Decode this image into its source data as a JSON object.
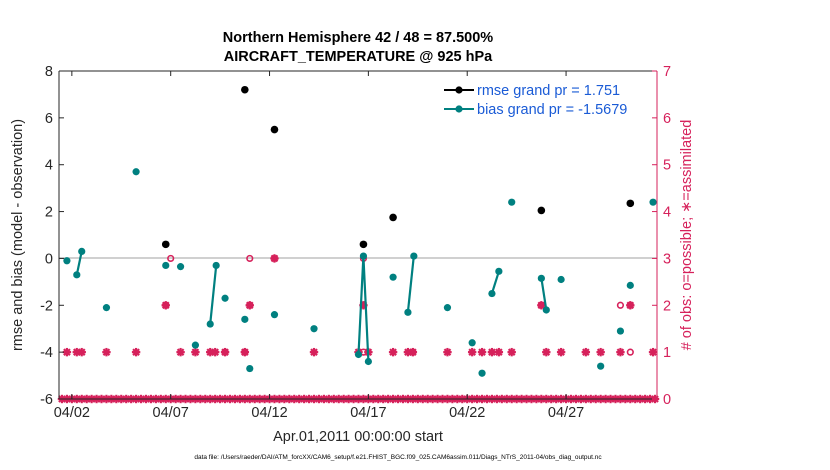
{
  "chart_data": {
    "type": "scatter",
    "title_line1": "Northern Hemisphere 42 / 48 = 87.500%",
    "title_line2": "AIRCRAFT_TEMPERATURE @ 925 hPa",
    "xlabel": "Apr.01,2011 00:00:00 start",
    "ylabel_left": "rmse and bias (model - observation)",
    "ylabel_right": "# of obs: o=possible; ∗=assimilated",
    "footer": "data file: /Users/raeder/DAI/ATM_forcXX/CAM6_setup/f.e21.FHIST_BGC.f09_025.CAM6assim.011/Diags_NTrS_2011-04/obs_diag_output.nc",
    "xlim": [
      1.35,
      31.6
    ],
    "ylim_left": [
      -6,
      8
    ],
    "ylim_right": [
      0,
      7
    ],
    "x_ticks": [
      2,
      7,
      12,
      17,
      22,
      27
    ],
    "x_tick_labels": [
      "04/02",
      "04/07",
      "04/12",
      "04/17",
      "04/22",
      "04/27"
    ],
    "y_ticks_left": [
      -6,
      -4,
      -2,
      0,
      2,
      4,
      6,
      8
    ],
    "y_ticks_right": [
      0,
      1,
      2,
      3,
      4,
      5,
      6,
      7
    ],
    "legend": {
      "position": "top-right",
      "entries": [
        {
          "label": "rmse grand pr = 1.751",
          "color": "#000000"
        },
        {
          "label": "bias grand pr = -1.5679",
          "color": "#008080"
        }
      ]
    },
    "colors": {
      "rmse": "#000000",
      "bias": "#008080",
      "obs": "#d6215b",
      "zero_line": "#b5b5b5",
      "legend_text": "#1a5bd6"
    },
    "rmse": [
      {
        "x": 6.75,
        "y": 0.6
      },
      {
        "x": 10.75,
        "y": 7.2
      },
      {
        "x": 12.25,
        "y": 5.5
      },
      {
        "x": 16.75,
        "y": 0.6
      },
      {
        "x": 18.25,
        "y": 1.75
      },
      {
        "x": 25.75,
        "y": 2.05
      },
      {
        "x": 30.25,
        "y": 2.35
      }
    ],
    "bias_segments": [
      [
        {
          "x": 1.75,
          "y": -0.1
        }
      ],
      [
        {
          "x": 2.25,
          "y": -0.7
        },
        {
          "x": 2.5,
          "y": 0.3
        }
      ],
      [
        {
          "x": 3.75,
          "y": -2.1
        }
      ],
      [
        {
          "x": 5.25,
          "y": 3.7
        }
      ],
      [
        {
          "x": 6.75,
          "y": -0.3
        }
      ],
      [
        {
          "x": 7.5,
          "y": -0.35
        }
      ],
      [
        {
          "x": 8.25,
          "y": -3.7
        }
      ],
      [
        {
          "x": 9.0,
          "y": -2.8
        },
        {
          "x": 9.3,
          "y": -0.3
        }
      ],
      [
        {
          "x": 9.75,
          "y": -1.7
        }
      ],
      [
        {
          "x": 10.75,
          "y": -2.6
        }
      ],
      [
        {
          "x": 11.0,
          "y": -4.7
        }
      ],
      [
        {
          "x": 12.25,
          "y": -2.4
        }
      ],
      [
        {
          "x": 14.25,
          "y": -3.0
        }
      ],
      [
        {
          "x": 16.5,
          "y": -4.1
        },
        {
          "x": 16.75,
          "y": 0.1
        },
        {
          "x": 17.0,
          "y": -4.4
        }
      ],
      [
        {
          "x": 18.25,
          "y": -0.8
        }
      ],
      [
        {
          "x": 19.0,
          "y": -2.3
        },
        {
          "x": 19.3,
          "y": 0.1
        }
      ],
      [
        {
          "x": 21.0,
          "y": -2.1
        }
      ],
      [
        {
          "x": 22.25,
          "y": -3.6
        }
      ],
      [
        {
          "x": 22.75,
          "y": -4.9
        }
      ],
      [
        {
          "x": 23.25,
          "y": -1.5
        },
        {
          "x": 23.6,
          "y": -0.55
        }
      ],
      [
        {
          "x": 24.25,
          "y": 2.4
        }
      ],
      [
        {
          "x": 25.75,
          "y": -0.85
        },
        {
          "x": 26.0,
          "y": -2.2
        }
      ],
      [
        {
          "x": 26.75,
          "y": -0.9
        }
      ],
      [
        {
          "x": 28.75,
          "y": -4.6
        }
      ],
      [
        {
          "x": 29.75,
          "y": -3.1
        }
      ],
      [
        {
          "x": 30.25,
          "y": -1.15
        }
      ],
      [
        {
          "x": 31.4,
          "y": 2.4
        }
      ]
    ],
    "obs_possible_nonzero": [
      {
        "x": 6.75,
        "y": 2
      },
      {
        "x": 7.0,
        "y": 3
      },
      {
        "x": 9.75,
        "y": 1
      },
      {
        "x": 10.75,
        "y": 1
      },
      {
        "x": 11.0,
        "y": 2
      },
      {
        "x": 11.0,
        "y": 3
      },
      {
        "x": 12.25,
        "y": 3
      },
      {
        "x": 16.75,
        "y": 1
      },
      {
        "x": 16.75,
        "y": 2
      },
      {
        "x": 16.75,
        "y": 3
      },
      {
        "x": 19.25,
        "y": 1
      },
      {
        "x": 25.75,
        "y": 2
      },
      {
        "x": 29.75,
        "y": 2
      },
      {
        "x": 30.25,
        "y": 1
      },
      {
        "x": 30.25,
        "y": 2
      }
    ],
    "obs_assimilated_nonzero": [
      {
        "x": 1.75,
        "y": 1
      },
      {
        "x": 2.25,
        "y": 1
      },
      {
        "x": 2.5,
        "y": 1
      },
      {
        "x": 3.75,
        "y": 1
      },
      {
        "x": 5.25,
        "y": 1
      },
      {
        "x": 6.75,
        "y": 2
      },
      {
        "x": 7.5,
        "y": 1
      },
      {
        "x": 8.25,
        "y": 1
      },
      {
        "x": 9.0,
        "y": 1
      },
      {
        "x": 9.25,
        "y": 1
      },
      {
        "x": 9.75,
        "y": 1
      },
      {
        "x": 10.75,
        "y": 1
      },
      {
        "x": 11.0,
        "y": 2
      },
      {
        "x": 12.25,
        "y": 3
      },
      {
        "x": 14.25,
        "y": 1
      },
      {
        "x": 16.5,
        "y": 1
      },
      {
        "x": 16.75,
        "y": 2
      },
      {
        "x": 17.0,
        "y": 1
      },
      {
        "x": 18.25,
        "y": 1
      },
      {
        "x": 19.0,
        "y": 1
      },
      {
        "x": 19.25,
        "y": 1
      },
      {
        "x": 21.0,
        "y": 1
      },
      {
        "x": 22.25,
        "y": 1
      },
      {
        "x": 22.75,
        "y": 1
      },
      {
        "x": 23.25,
        "y": 1
      },
      {
        "x": 23.6,
        "y": 1
      },
      {
        "x": 24.25,
        "y": 1
      },
      {
        "x": 25.75,
        "y": 2
      },
      {
        "x": 26.0,
        "y": 1
      },
      {
        "x": 26.75,
        "y": 1
      },
      {
        "x": 28.0,
        "y": 1
      },
      {
        "x": 28.75,
        "y": 1
      },
      {
        "x": 29.75,
        "y": 1
      },
      {
        "x": 30.25,
        "y": 2
      },
      {
        "x": 31.4,
        "y": 1
      }
    ],
    "obs_zero_x_start": 1.5,
    "obs_zero_x_end": 31.5,
    "obs_zero_x_step": 0.25
  }
}
